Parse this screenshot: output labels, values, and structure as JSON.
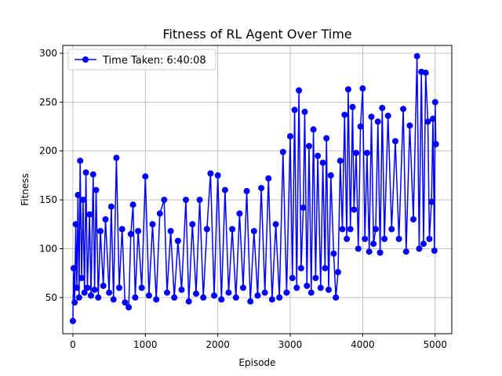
{
  "chart_data": {
    "type": "line",
    "title": "Fitness of RL Agent Over Time",
    "xlabel": "Episode",
    "ylabel": "Fitness",
    "xlim": [
      -140,
      5230
    ],
    "ylim": [
      13,
      308
    ],
    "xticks": [
      0,
      1000,
      2000,
      3000,
      4000,
      5000
    ],
    "yticks": [
      50,
      100,
      150,
      200,
      250,
      300
    ],
    "grid": true,
    "legend_placement": "top-left",
    "series": [
      {
        "name": "Time Taken: 6:40:08",
        "color": "#0000ff",
        "marker": "circle",
        "sampled_points": [
          [
            0,
            26
          ],
          [
            10,
            80
          ],
          [
            25,
            45
          ],
          [
            40,
            125
          ],
          [
            55,
            60
          ],
          [
            70,
            155
          ],
          [
            85,
            50
          ],
          [
            100,
            190
          ],
          [
            120,
            70
          ],
          [
            140,
            150
          ],
          [
            160,
            55
          ],
          [
            180,
            178
          ],
          [
            200,
            60
          ],
          [
            230,
            135
          ],
          [
            250,
            52
          ],
          [
            280,
            176
          ],
          [
            300,
            58
          ],
          [
            320,
            160
          ],
          [
            350,
            50
          ],
          [
            380,
            118
          ],
          [
            420,
            62
          ],
          [
            450,
            130
          ],
          [
            500,
            55
          ],
          [
            530,
            143
          ],
          [
            560,
            48
          ],
          [
            600,
            193
          ],
          [
            640,
            60
          ],
          [
            680,
            120
          ],
          [
            720,
            45
          ],
          [
            770,
            40
          ],
          [
            800,
            115
          ],
          [
            830,
            145
          ],
          [
            860,
            50
          ],
          [
            900,
            118
          ],
          [
            950,
            60
          ],
          [
            1000,
            174
          ],
          [
            1050,
            52
          ],
          [
            1100,
            125
          ],
          [
            1150,
            48
          ],
          [
            1200,
            136
          ],
          [
            1260,
            150
          ],
          [
            1300,
            55
          ],
          [
            1350,
            118
          ],
          [
            1400,
            50
          ],
          [
            1450,
            108
          ],
          [
            1500,
            58
          ],
          [
            1560,
            150
          ],
          [
            1600,
            46
          ],
          [
            1650,
            125
          ],
          [
            1700,
            54
          ],
          [
            1750,
            150
          ],
          [
            1800,
            50
          ],
          [
            1850,
            120
          ],
          [
            1900,
            177
          ],
          [
            1950,
            52
          ],
          [
            2000,
            175
          ],
          [
            2050,
            48
          ],
          [
            2100,
            160
          ],
          [
            2150,
            55
          ],
          [
            2200,
            120
          ],
          [
            2250,
            50
          ],
          [
            2300,
            136
          ],
          [
            2350,
            60
          ],
          [
            2400,
            159
          ],
          [
            2450,
            46
          ],
          [
            2500,
            118
          ],
          [
            2550,
            52
          ],
          [
            2600,
            162
          ],
          [
            2650,
            55
          ],
          [
            2700,
            172
          ],
          [
            2750,
            48
          ],
          [
            2800,
            125
          ],
          [
            2850,
            50
          ],
          [
            2900,
            199
          ],
          [
            2950,
            55
          ],
          [
            3000,
            215
          ],
          [
            3030,
            70
          ],
          [
            3060,
            242
          ],
          [
            3090,
            60
          ],
          [
            3120,
            262
          ],
          [
            3150,
            80
          ],
          [
            3180,
            142
          ],
          [
            3200,
            240
          ],
          [
            3230,
            62
          ],
          [
            3260,
            205
          ],
          [
            3290,
            55
          ],
          [
            3320,
            222
          ],
          [
            3350,
            70
          ],
          [
            3380,
            195
          ],
          [
            3420,
            60
          ],
          [
            3450,
            188
          ],
          [
            3480,
            80
          ],
          [
            3500,
            213
          ],
          [
            3530,
            58
          ],
          [
            3560,
            175
          ],
          [
            3600,
            95
          ],
          [
            3630,
            50
          ],
          [
            3660,
            76
          ],
          [
            3690,
            190
          ],
          [
            3720,
            120
          ],
          [
            3750,
            237
          ],
          [
            3780,
            110
          ],
          [
            3800,
            263
          ],
          [
            3830,
            120
          ],
          [
            3860,
            245
          ],
          [
            3880,
            140
          ],
          [
            3910,
            198
          ],
          [
            3940,
            100
          ],
          [
            3970,
            225
          ],
          [
            4000,
            264
          ],
          [
            4030,
            110
          ],
          [
            4060,
            198
          ],
          [
            4090,
            97
          ],
          [
            4120,
            235
          ],
          [
            4150,
            105
          ],
          [
            4180,
            120
          ],
          [
            4210,
            230
          ],
          [
            4240,
            96
          ],
          [
            4270,
            244
          ],
          [
            4300,
            110
          ],
          [
            4350,
            236
          ],
          [
            4400,
            120
          ],
          [
            4450,
            210
          ],
          [
            4500,
            110
          ],
          [
            4560,
            243
          ],
          [
            4600,
            97
          ],
          [
            4650,
            226
          ],
          [
            4700,
            130
          ],
          [
            4750,
            297
          ],
          [
            4780,
            100
          ],
          [
            4810,
            281
          ],
          [
            4840,
            105
          ],
          [
            4870,
            280
          ],
          [
            4900,
            230
          ],
          [
            4920,
            110
          ],
          [
            4950,
            148
          ],
          [
            4970,
            233
          ],
          [
            4990,
            98
          ],
          [
            5000,
            250
          ],
          [
            5010,
            207
          ]
        ]
      }
    ]
  }
}
